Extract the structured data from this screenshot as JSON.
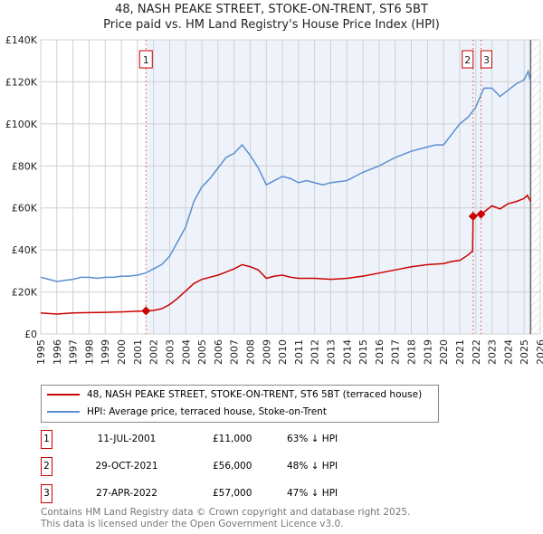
{
  "chart_data": {
    "type": "line",
    "title": "48, NASH PEAKE STREET, STOKE-ON-TRENT, ST6 5BT",
    "subtitle": "Price paid vs. HM Land Registry's House Price Index (HPI)",
    "xlim": [
      1995,
      2026
    ],
    "ylim": [
      0,
      140000
    ],
    "x_ticks": [
      "1995",
      "1996",
      "1997",
      "1998",
      "1999",
      "2000",
      "2001",
      "2002",
      "2003",
      "2004",
      "2005",
      "2006",
      "2007",
      "2008",
      "2009",
      "2010",
      "2011",
      "2012",
      "2013",
      "2014",
      "2015",
      "2016",
      "2017",
      "2018",
      "2019",
      "2020",
      "2021",
      "2022",
      "2023",
      "2024",
      "2025",
      "2026"
    ],
    "y_ticks": [
      {
        "v": 0,
        "l": "£0"
      },
      {
        "v": 20000,
        "l": "£20K"
      },
      {
        "v": 40000,
        "l": "£40K"
      },
      {
        "v": 60000,
        "l": "£60K"
      },
      {
        "v": 80000,
        "l": "£80K"
      },
      {
        "v": 100000,
        "l": "£100K"
      },
      {
        "v": 120000,
        "l": "£120K"
      },
      {
        "v": 140000,
        "l": "£140K"
      }
    ],
    "grid": true,
    "series": [
      {
        "name": "48, NASH PEAKE STREET, STOKE-ON-TRENT, ST6 5BT (terraced house)",
        "color": "#cc0000",
        "x": [
          1995,
          1996,
          1997,
          1998,
          1999,
          2000,
          2001,
          2001.53,
          2002,
          2002.5,
          2003,
          2003.5,
          2004,
          2004.5,
          2005,
          2005.5,
          2006,
          2006.5,
          2007,
          2007.5,
          2008,
          2008.5,
          2009,
          2009.5,
          2010,
          2010.5,
          2011,
          2012,
          2013,
          2014,
          2015,
          2016,
          2017,
          2018,
          2019,
          2020,
          2020.5,
          2021,
          2021.5,
          2021.8,
          2021.83,
          2022,
          2022.32,
          2022.5,
          2023,
          2023.5,
          2024,
          2024.5,
          2025,
          2025.2,
          2025.4
        ],
        "y": [
          10000,
          9500,
          10000,
          10200,
          10300,
          10500,
          10800,
          11000,
          11200,
          12000,
          14000,
          17000,
          20500,
          24000,
          26000,
          27000,
          28000,
          29500,
          31000,
          33000,
          32000,
          30500,
          26500,
          27500,
          28000,
          27000,
          26500,
          26500,
          26000,
          26500,
          27500,
          29000,
          30500,
          32000,
          33000,
          33500,
          34500,
          35000,
          37500,
          39500,
          56000,
          56500,
          57000,
          58000,
          61000,
          59500,
          62000,
          63000,
          64500,
          66000,
          63000
        ]
      },
      {
        "name": "HPI: Average price, terraced house, Stoke-on-Trent",
        "color": "#5b8fd0",
        "x": [
          1995,
          1995.5,
          1996,
          1996.5,
          1997,
          1997.5,
          1998,
          1998.5,
          1999,
          1999.5,
          2000,
          2000.5,
          2001,
          2001.5,
          2002,
          2002.5,
          2003,
          2003.5,
          2004,
          2004.5,
          2005,
          2005.5,
          2006,
          2006.5,
          2007,
          2007.5,
          2008,
          2008.5,
          2009,
          2009.5,
          2010,
          2010.5,
          2011,
          2011.5,
          2012,
          2012.5,
          2013,
          2014,
          2015,
          2016,
          2017,
          2018,
          2019,
          2019.5,
          2020,
          2020.5,
          2021,
          2021.5,
          2022,
          2022.5,
          2023,
          2023.5,
          2024,
          2024.5,
          2025,
          2025.25,
          2025.4
        ],
        "y": [
          27000,
          26000,
          25000,
          25500,
          26000,
          27000,
          27000,
          26500,
          27000,
          27000,
          27500,
          27500,
          28000,
          29000,
          31000,
          33000,
          37000,
          44000,
          51000,
          63000,
          70000,
          74000,
          79000,
          84000,
          86000,
          90000,
          85000,
          79000,
          71000,
          73000,
          75000,
          74000,
          72000,
          73000,
          72000,
          71000,
          72000,
          73000,
          77000,
          80000,
          84000,
          87000,
          89000,
          90000,
          90000,
          95000,
          100000,
          103000,
          108000,
          117000,
          117000,
          113000,
          116000,
          119000,
          121000,
          125000,
          120000
        ]
      }
    ],
    "transactions": [
      {
        "n": "1",
        "x": 2001.53,
        "date": "11-JUL-2001",
        "price": "£11,000",
        "price_value": 11000,
        "hpi": "63% ↓ HPI"
      },
      {
        "n": "2",
        "x": 2021.83,
        "date": "29-OCT-2021",
        "price": "£56,000",
        "price_value": 56000,
        "hpi": "48% ↓ HPI"
      },
      {
        "n": "3",
        "x": 2022.32,
        "date": "27-APR-2022",
        "price": "£57,000",
        "price_value": 57000,
        "hpi": "47% ↓ HPI"
      }
    ],
    "shaded_from": 2001.53,
    "hatched_from": 2025.4
  },
  "footer": {
    "line1": "Contains HM Land Registry data © Crown copyright and database right 2025.",
    "line2": "This data is licensed under the Open Government Licence v3.0."
  }
}
